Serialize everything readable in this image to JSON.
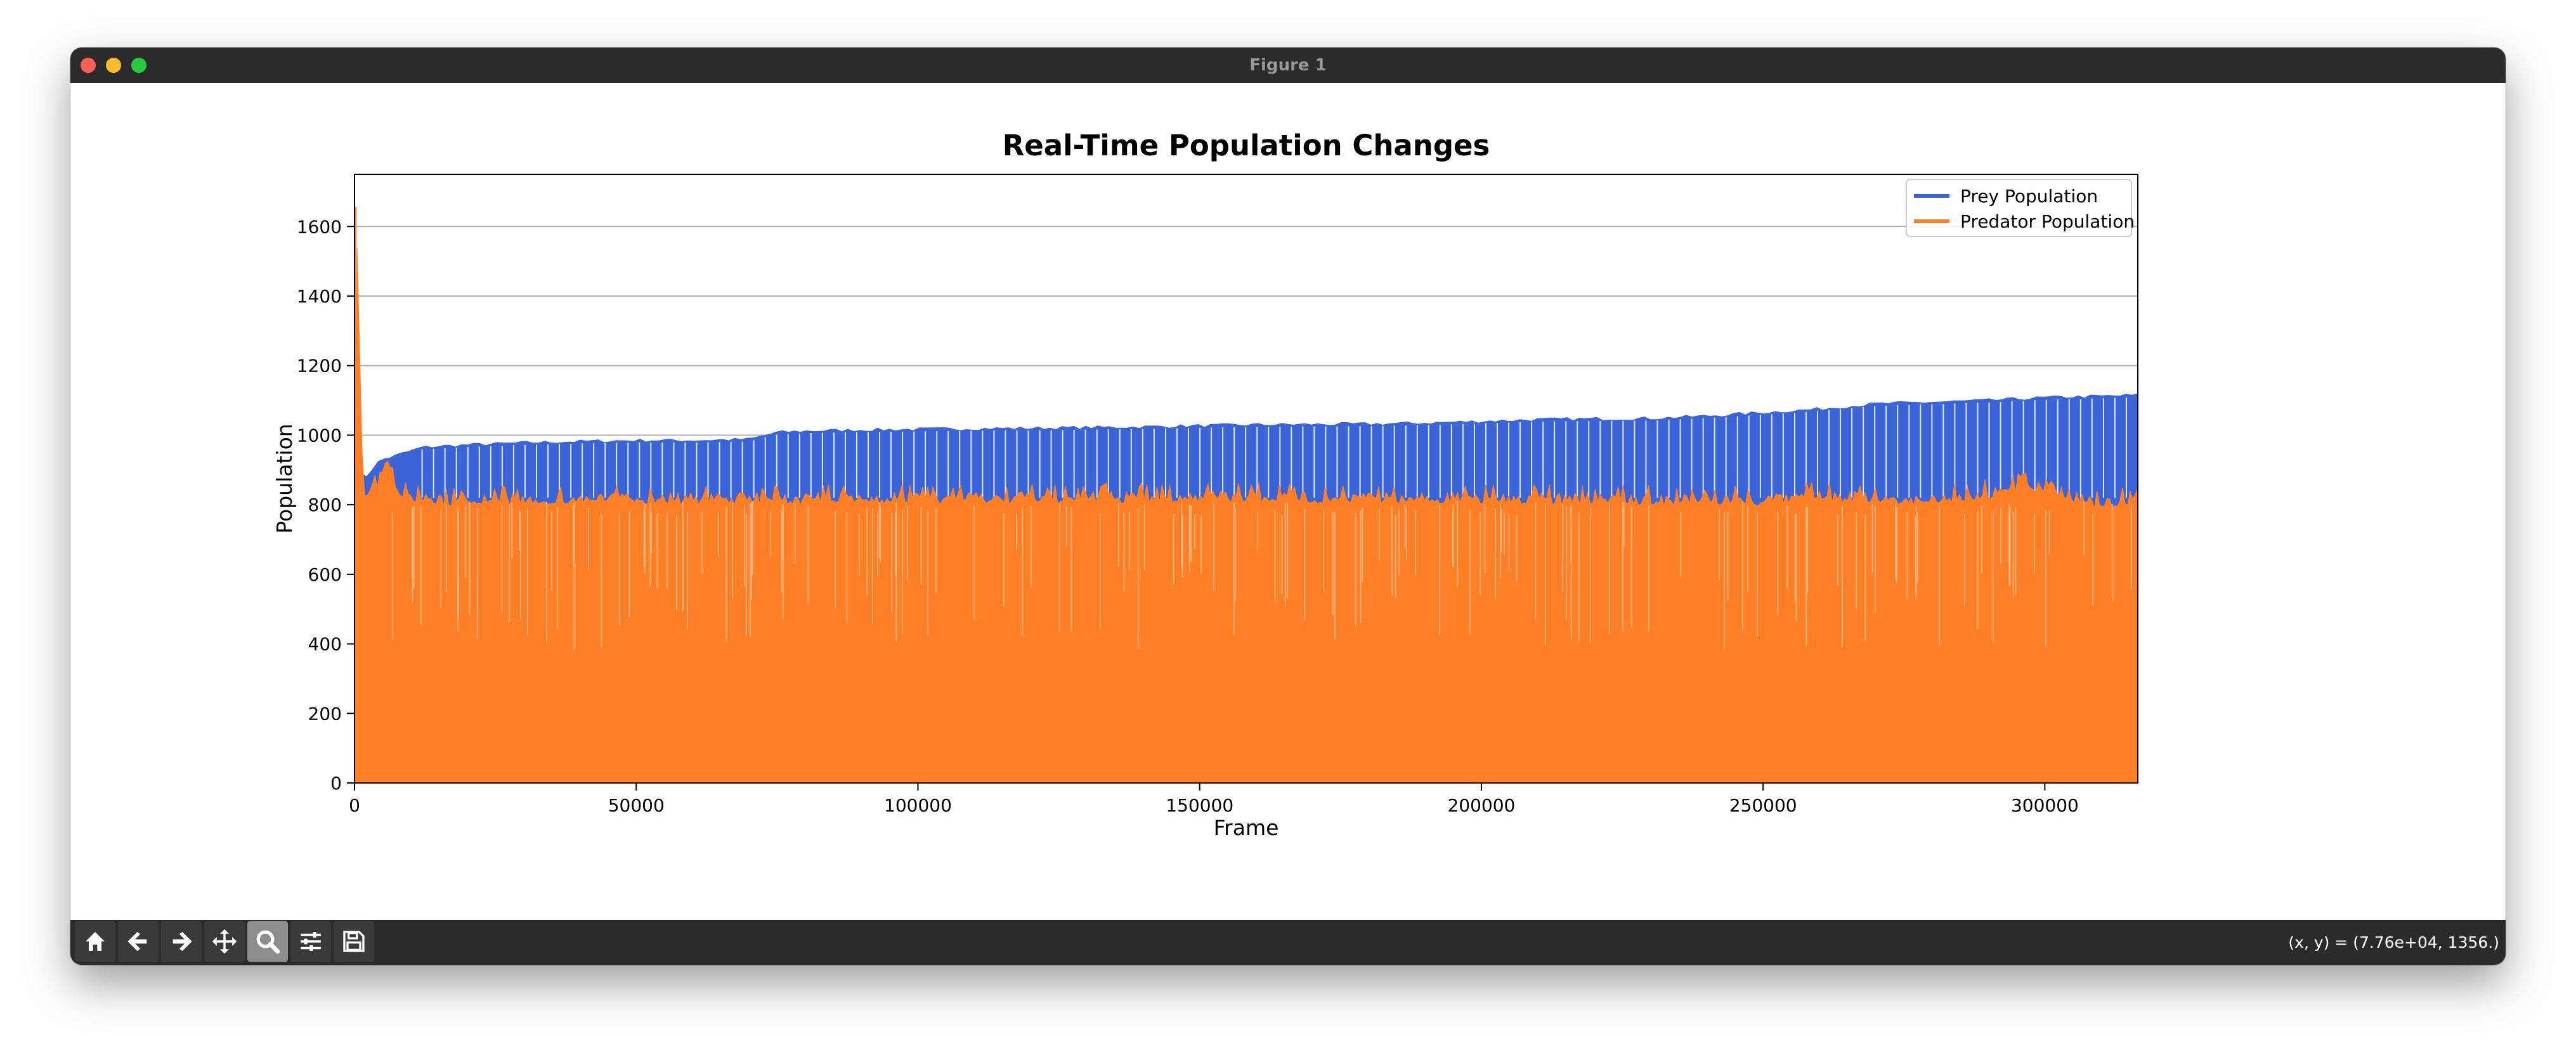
{
  "window": {
    "title": "Figure 1"
  },
  "toolbar": {
    "buttons": [
      {
        "name": "home-button",
        "icon": "home-icon"
      },
      {
        "name": "back-button",
        "icon": "arrow-left-icon"
      },
      {
        "name": "forward-button",
        "icon": "arrow-right-icon"
      },
      {
        "name": "pan-button",
        "icon": "move-icon"
      },
      {
        "name": "zoom-button",
        "icon": "magnifier-icon",
        "active": true
      },
      {
        "name": "configure-subplots-button",
        "icon": "sliders-icon"
      },
      {
        "name": "save-button",
        "icon": "floppy-disk-icon"
      }
    ],
    "coords": "(x, y) = (7.76e+04, 1356.)"
  },
  "chart_data": {
    "type": "line",
    "title": "Real-Time Population Changes",
    "xlabel": "Frame",
    "ylabel": "Population",
    "xlim": [
      0,
      316500
    ],
    "ylim": [
      0,
      1750
    ],
    "xticks": [
      0,
      50000,
      100000,
      150000,
      200000,
      250000,
      300000
    ],
    "yticks": [
      0,
      200,
      400,
      600,
      800,
      1000,
      1200,
      1400,
      1600
    ],
    "grid": "horizontal",
    "legend_position": "top-right",
    "series": [
      {
        "name": "Prey Population",
        "color": "#3a64d8",
        "peak": {
          "x": 300,
          "y": 1650
        },
        "upper_envelope": {
          "x": [
            0,
            300,
            1000,
            2000,
            3000,
            4000,
            5000,
            6000,
            7000,
            8000,
            10000,
            12000,
            15000,
            20000,
            30000,
            40000,
            50000,
            60000,
            70000,
            73000,
            75000,
            80000,
            90000,
            100000,
            110000,
            120000,
            130000,
            140000,
            150000,
            160000,
            170000,
            180000,
            190000,
            200000,
            210000,
            220000,
            230000,
            240000,
            250000,
            260000,
            270000,
            280000,
            290000,
            300000,
            310000,
            316500
          ],
          "y": [
            900,
            1650,
            890,
            880,
            900,
            920,
            930,
            935,
            940,
            945,
            955,
            965,
            968,
            972,
            978,
            982,
            985,
            985,
            988,
            1000,
            1008,
            1012,
            1015,
            1017,
            1019,
            1020,
            1022,
            1024,
            1027,
            1030,
            1031,
            1032,
            1035,
            1040,
            1045,
            1047,
            1048,
            1055,
            1065,
            1075,
            1090,
            1095,
            1100,
            1108,
            1112,
            1115
          ]
        },
        "trough": 820
      },
      {
        "name": "Predator Population",
        "color": "#ff7f27",
        "peak": {
          "x": 300,
          "y": 1655
        },
        "upper_envelope": {
          "x": [
            0,
            300,
            1500,
            3000,
            5000,
            6500,
            7500,
            10000,
            20000,
            50000,
            100000,
            150000,
            200000,
            250000,
            260000,
            270000,
            280000,
            290000,
            295000,
            300000,
            305000,
            310000,
            316500
          ],
          "y": [
            850,
            1655,
            860,
            840,
            920,
            930,
            860,
            835,
            830,
            835,
            835,
            840,
            835,
            830,
            845,
            835,
            830,
            850,
            870,
            875,
            840,
            820,
            830
          ]
        },
        "typical_high": 810,
        "trough_min": 380
      }
    ],
    "legend": [
      "Prey Population",
      "Predator Population"
    ]
  }
}
